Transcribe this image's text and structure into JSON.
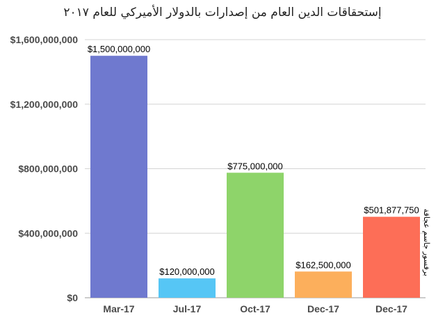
{
  "chart_data": {
    "type": "bar",
    "title": "إستحقاقات الدين العام من إصدارات بالدولار الأميركي للعام ٢٠١٧",
    "credit": "برفسور جاسم عجاقة",
    "categories": [
      "Mar-17",
      "Jul-17",
      "Oct-17",
      "Dec-17",
      "Dec-17"
    ],
    "values": [
      1500000000,
      120000000,
      775000000,
      162500000,
      501877750
    ],
    "data_labels": [
      "$1,500,000,000",
      "$120,000,000",
      "$775,000,000",
      "$162,500,000",
      "$501,877,750"
    ],
    "bar_colors": [
      "#6F79CF",
      "#56C6F5",
      "#8ED46A",
      "#FCAF5C",
      "#FD6E57"
    ],
    "ylim": [
      0,
      1600000000
    ],
    "y_ticks": [
      0,
      400000000,
      800000000,
      1200000000,
      1600000000
    ],
    "y_tick_labels": [
      "$0",
      "$400,000,000",
      "$800,000,000",
      "$1,200,000,000",
      "$1,600,000,000"
    ],
    "xlabel": "",
    "ylabel": "",
    "grid": true,
    "legend": "none"
  }
}
